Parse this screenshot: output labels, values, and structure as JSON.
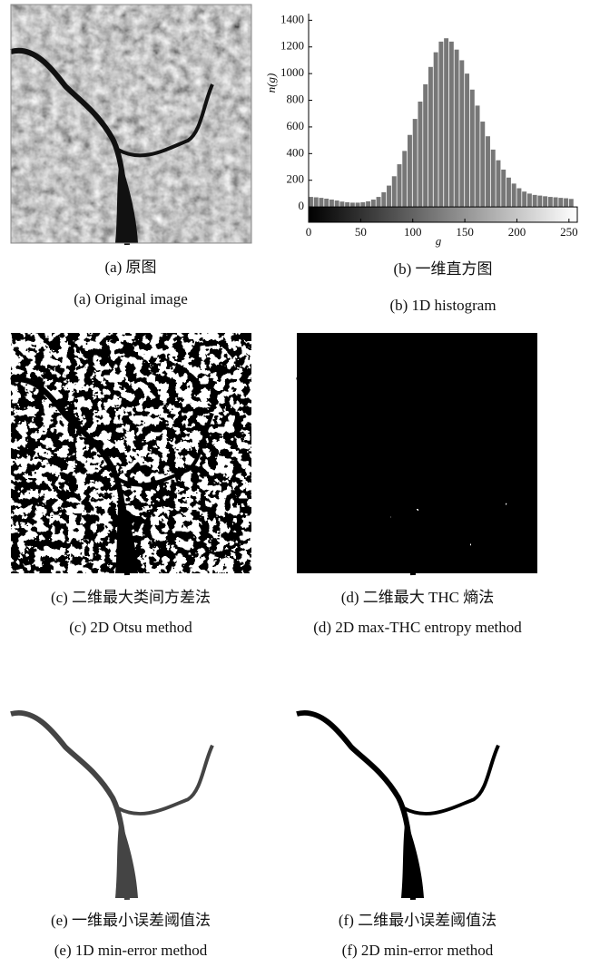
{
  "panels": [
    {
      "caption_cn": "(a) 原图",
      "caption_en": "(a) Original image"
    },
    {
      "caption_cn": "(b) 一维直方图",
      "caption_en": "(b) 1D histogram"
    },
    {
      "caption_cn": "(c) 二维最大类间方差法",
      "caption_en": "(c) 2D Otsu method"
    },
    {
      "caption_cn": "(d) 二维最大 THC 熵法",
      "caption_en": "(d) 2D max-THC entropy method"
    },
    {
      "caption_cn": "(e) 一维最小误差阈值法",
      "caption_en": "(e) 1D min-error method"
    },
    {
      "caption_cn": "(f) 二维最小误差阈值法",
      "caption_en": "(f) 2D min-error method"
    }
  ],
  "chart_data": {
    "type": "histogram",
    "x_label": "g",
    "y_label": "n(g)",
    "color": "#777777",
    "bins": [
      0,
      5,
      10,
      15,
      20,
      25,
      30,
      35,
      40,
      45,
      50,
      55,
      60,
      65,
      70,
      75,
      80,
      85,
      90,
      95,
      100,
      105,
      110,
      115,
      120,
      125,
      130,
      135,
      140,
      145,
      150,
      155,
      160,
      165,
      170,
      175,
      180,
      185,
      190,
      195,
      200,
      205,
      210,
      215,
      220,
      225,
      230,
      235,
      240,
      245,
      250,
      255
    ],
    "values": [
      75,
      72,
      68,
      62,
      55,
      48,
      40,
      35,
      32,
      32,
      35,
      42,
      55,
      75,
      110,
      160,
      230,
      320,
      420,
      540,
      660,
      790,
      920,
      1050,
      1160,
      1240,
      1265,
      1240,
      1180,
      1100,
      1000,
      880,
      760,
      640,
      530,
      430,
      350,
      280,
      220,
      175,
      140,
      115,
      100,
      90,
      85,
      80,
      75,
      72,
      68,
      65,
      60
    ],
    "xlim": [
      0,
      258
    ],
    "xticks": [
      0,
      50,
      100,
      150,
      200,
      250
    ],
    "ylim": [
      -115,
      1450
    ],
    "yticks": [
      0,
      200,
      400,
      600,
      800,
      1000,
      1200,
      1400
    ]
  }
}
